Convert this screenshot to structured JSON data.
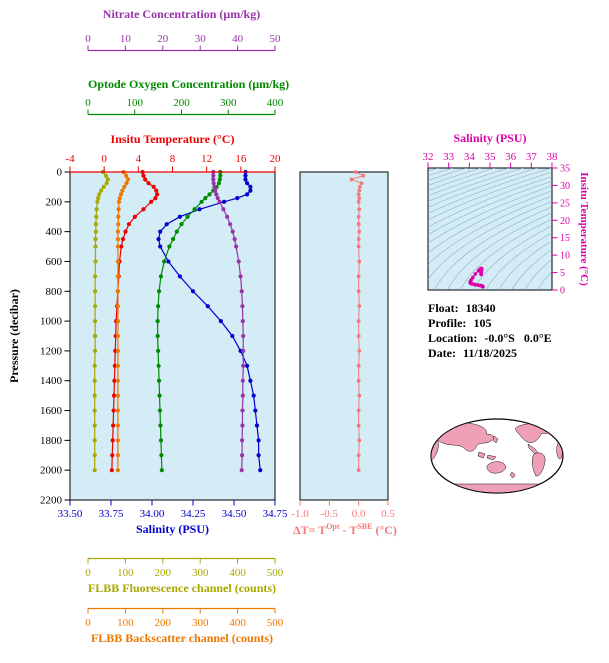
{
  "colors": {
    "plot_bg": "#d3ecf5",
    "frame": "#000000",
    "nitrate": "#9933aa",
    "oxygen": "#008a00",
    "temperature": "#ee0000",
    "salinity": "#0000cc",
    "fluorescence": "#a8a800",
    "backscatter": "#ee7700",
    "delta": "#f27a7a",
    "ts": "#dd00aa",
    "land": "#f0a0b6"
  },
  "axes": {
    "nitrate": {
      "title": "Nitrate Concentration (μm/kg)",
      "ticks": [
        "0",
        "10",
        "20",
        "30",
        "40",
        "50"
      ],
      "range": [
        0,
        50
      ]
    },
    "oxygen": {
      "title": "Optode Oxygen Concentration (μm/kg)",
      "ticks": [
        "0",
        "100",
        "200",
        "300",
        "400"
      ],
      "range": [
        0,
        400
      ]
    },
    "temperature": {
      "title": "Insitu Temperature (°C)",
      "ticks": [
        "-4",
        "0",
        "4",
        "8",
        "12",
        "16",
        "20"
      ],
      "range": [
        -4,
        20
      ]
    },
    "pressure": {
      "title": "Pressure (decibar)",
      "ticks": [
        "0",
        "200",
        "400",
        "600",
        "800",
        "1000",
        "1200",
        "1400",
        "1600",
        "1800",
        "2000",
        "2200"
      ],
      "range": [
        0,
        2200
      ]
    },
    "salinity": {
      "title": "Salinity (PSU)",
      "ticks": [
        "33.50",
        "33.75",
        "34.00",
        "34.25",
        "34.50",
        "34.75"
      ],
      "range": [
        33.5,
        34.75
      ]
    },
    "fluorescence": {
      "title": "FLBB Fluorescence channel (counts)",
      "ticks": [
        "0",
        "100",
        "200",
        "300",
        "400",
        "500"
      ],
      "range": [
        0,
        500
      ]
    },
    "backscatter": {
      "title": "FLBB Backscatter channel (counts)",
      "ticks": [
        "0",
        "100",
        "200",
        "300",
        "400",
        "500"
      ],
      "range": [
        0,
        500
      ]
    },
    "delta": {
      "title_pre": "ΔT= T",
      "title_sup1": "Opt",
      "title_mid": " - T",
      "title_sup2": "SBE",
      "title_post": " (°C)",
      "ticks": [
        "-1.0",
        "-0.5",
        "0.0",
        "0.5"
      ],
      "range": [
        -1.0,
        0.5
      ]
    },
    "ts_salinity": {
      "title": "Salinity (PSU)",
      "ticks": [
        "32",
        "33",
        "34",
        "35",
        "36",
        "37",
        "38"
      ],
      "range": [
        32,
        38
      ]
    },
    "ts_temperature": {
      "title": "Insitu Temperature (°C)",
      "ticks": [
        "0",
        "5",
        "10",
        "15",
        "20",
        "25",
        "30",
        "35"
      ],
      "range": [
        0,
        35
      ]
    }
  },
  "info": {
    "float_label": "Float:",
    "float_value": "18340",
    "profile_label": "Profile:",
    "profile_value": "105",
    "location_label": "Location:",
    "location_value": "-0.0°S   0.0°E",
    "date_label": "Date:",
    "date_value": "11/18/2025"
  },
  "chart_data": [
    {
      "type": "line",
      "title": "Float multi-parameter depth profiles",
      "ylabel": "Pressure (decibar)",
      "ylim": [
        0,
        2200
      ],
      "y_inverted": true,
      "grid": false,
      "pressure": [
        0,
        25,
        50,
        75,
        100,
        125,
        150,
        175,
        200,
        250,
        300,
        350,
        400,
        450,
        500,
        600,
        700,
        800,
        900,
        1000,
        1100,
        1200,
        1300,
        1400,
        1500,
        1600,
        1700,
        1800,
        1900,
        2000
      ],
      "series": [
        {
          "name": "Insitu Temperature (°C)",
          "color_key": "temperature",
          "xlim": [
            -4,
            20
          ],
          "axis_span": "full",
          "values": [
            4.5,
            4.6,
            4.8,
            5.2,
            5.8,
            6.1,
            6.2,
            6.0,
            5.5,
            4.6,
            3.6,
            2.9,
            2.5,
            2.2,
            2.0,
            1.8,
            1.7,
            1.6,
            1.5,
            1.4,
            1.35,
            1.3,
            1.25,
            1.2,
            1.15,
            1.1,
            1.05,
            1.0,
            0.95,
            0.9
          ]
        },
        {
          "name": "Salinity (PSU)",
          "color_key": "salinity",
          "xlim": [
            33.5,
            34.75
          ],
          "axis_span": "full",
          "values": [
            34.57,
            34.57,
            34.57,
            34.58,
            34.6,
            34.6,
            34.58,
            34.52,
            34.44,
            34.29,
            34.17,
            34.09,
            34.05,
            34.04,
            34.05,
            34.1,
            34.17,
            34.25,
            34.34,
            34.42,
            34.49,
            34.54,
            34.58,
            34.6,
            34.62,
            34.63,
            34.64,
            34.65,
            34.65,
            34.66
          ]
        },
        {
          "name": "Optode Oxygen Concentration (μm/kg)",
          "color_key": "oxygen",
          "xlim": [
            0,
            400
          ],
          "axis_span": "inset",
          "values": [
            283,
            283,
            282,
            280,
            275,
            268,
            260,
            251,
            243,
            228,
            213,
            200,
            190,
            182,
            174,
            163,
            156,
            152,
            150,
            149,
            149,
            150,
            151,
            152,
            153,
            154,
            155,
            156,
            157,
            158
          ]
        },
        {
          "name": "Nitrate Concentration (μm/kg)",
          "color_key": "nitrate",
          "xlim": [
            0,
            50
          ],
          "axis_span": "inset",
          "values": [
            33.5,
            33.5,
            33.5,
            33.6,
            33.8,
            34.0,
            34.3,
            34.7,
            35.2,
            36.2,
            37.2,
            38.0,
            38.7,
            39.2,
            39.6,
            40.3,
            40.8,
            41.1,
            41.3,
            41.4,
            41.5,
            41.5,
            41.5,
            41.4,
            41.4,
            41.3,
            41.3,
            41.2,
            41.2,
            41.1
          ]
        },
        {
          "name": "FLBB Fluorescence channel (counts)",
          "color_key": "fluorescence",
          "xlim": [
            0,
            500
          ],
          "axis_span": "inset",
          "values": [
            40,
            48,
            53,
            50,
            42,
            35,
            30,
            27,
            25,
            23,
            22,
            21,
            21,
            20,
            20,
            20,
            19,
            19,
            19,
            19,
            19,
            19,
            18,
            18,
            18,
            18,
            18,
            18,
            18,
            18
          ]
        },
        {
          "name": "FLBB Backscatter channel (counts)",
          "color_key": "backscatter",
          "xlim": [
            0,
            500
          ],
          "axis_span": "inset",
          "values": [
            95,
            102,
            107,
            103,
            97,
            92,
            88,
            85,
            83,
            82,
            81,
            81,
            80,
            80,
            80,
            80,
            80,
            80,
            80,
            80,
            80,
            80,
            80,
            80,
            80,
            80,
            80,
            80,
            80,
            80
          ]
        }
      ]
    },
    {
      "type": "scatter",
      "title": "ΔT= T^Opt - T^SBE (°C)",
      "xlim": [
        -1.0,
        0.5
      ],
      "ylim": [
        0,
        2200
      ],
      "y_inverted": true,
      "color_key": "delta",
      "pressure": [
        0,
        25,
        50,
        75,
        100,
        125,
        150,
        175,
        200,
        250,
        300,
        350,
        400,
        450,
        500,
        600,
        700,
        800,
        900,
        1000,
        1100,
        1200,
        1300,
        1400,
        1500,
        1600,
        1700,
        1800,
        1900,
        2000
      ],
      "values": [
        -0.05,
        0.08,
        -0.12,
        0.05,
        0.02,
        0.01,
        0.0,
        0.01,
        0.0,
        0.01,
        0.0,
        0.0,
        0.01,
        0.0,
        0.0,
        0.01,
        0.0,
        0.0,
        0.01,
        0.0,
        0.0,
        0.01,
        0.0,
        0.0,
        0.01,
        0.0,
        0.0,
        0.01,
        0.0,
        0.0
      ]
    },
    {
      "type": "scatter",
      "title": "T-S diagram",
      "xlabel": "Salinity (PSU)",
      "ylabel": "Insitu Temperature (°C)",
      "xlim": [
        32,
        38
      ],
      "ylim": [
        0,
        35
      ],
      "color_key": "ts",
      "points_from": [
        "Salinity (PSU)",
        "Insitu Temperature (°C)"
      ],
      "background_contours": "potential density isolines"
    }
  ]
}
